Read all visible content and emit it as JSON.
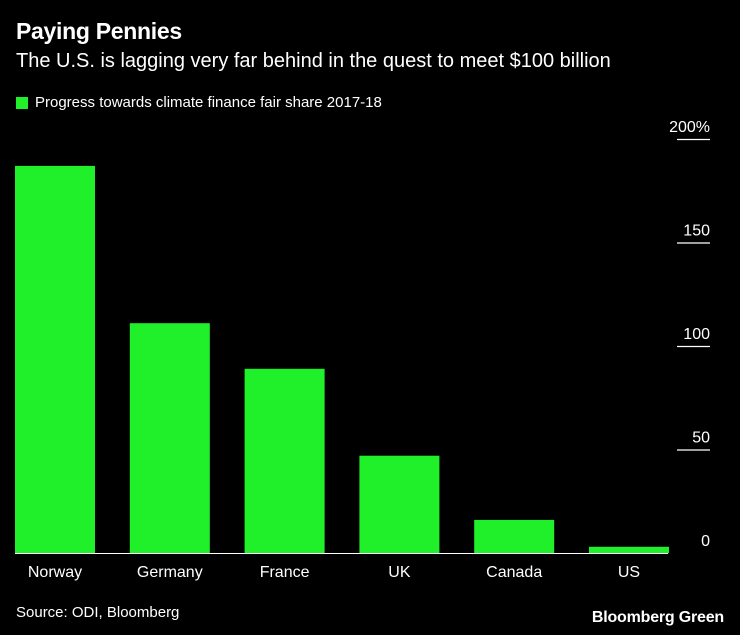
{
  "colors": {
    "background": "#000000",
    "bar": "#1ff02a",
    "text": "#ffffff",
    "gridline": "#ffffff"
  },
  "header": {
    "title": "Paying Pennies",
    "subtitle": "The U.S. is lagging very far behind in the quest to meet $100 billion"
  },
  "footer": {
    "source": "Source: ODI, Bloomberg",
    "brand": "Bloomberg Green"
  },
  "chart_data": {
    "type": "bar",
    "title": "Paying Pennies",
    "subtitle": "The U.S. is lagging very far behind in the quest to meet $100 billion",
    "legend": [
      "Progress towards climate finance fair share 2017-18"
    ],
    "legend_position": "top-left",
    "categories": [
      "Norway",
      "Germany",
      "France",
      "UK",
      "Canada",
      "US"
    ],
    "series": [
      {
        "name": "Progress towards climate finance fair share 2017-18",
        "values": [
          187,
          111,
          89,
          47,
          16,
          3
        ]
      }
    ],
    "xlabel": "",
    "ylabel": "",
    "ylim": [
      0,
      200
    ],
    "yticks": [
      0,
      50,
      100,
      150,
      200
    ],
    "ytick_labels": [
      "0",
      "50",
      "100",
      "150",
      "200%"
    ],
    "y_axis_side": "right",
    "grid": false
  }
}
